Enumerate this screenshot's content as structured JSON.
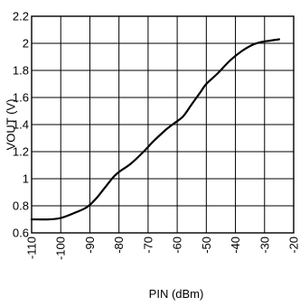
{
  "chart_data": {
    "type": "line",
    "xlabel": "PIN (dBm)",
    "ylabel": "VOUT (V)",
    "xlim": [
      -110,
      -20
    ],
    "ylim": [
      0.6,
      2.2
    ],
    "x_ticks": [
      -110,
      -100,
      -90,
      -80,
      -70,
      -60,
      -50,
      -40,
      -30,
      -20
    ],
    "y_ticks": [
      0.6,
      0.8,
      1,
      1.2,
      1.4,
      1.6,
      1.8,
      2,
      2.2
    ],
    "x_tick_labels": [
      "-110",
      "-100",
      "-90",
      "-80",
      "-70",
      "-60",
      "-50",
      "-40",
      "-30",
      "-20"
    ],
    "y_tick_labels": [
      "0.6",
      "0.8",
      "1",
      "1.2",
      "1.4",
      "1.6",
      "1.8",
      "2",
      "2.2"
    ],
    "grid": true,
    "series": [
      {
        "x": [
          -110,
          -104,
          -100,
          -95,
          -91,
          -88,
          -85,
          -82,
          -80,
          -76,
          -72,
          -68,
          -64,
          -61,
          -58,
          -55,
          -52,
          -50,
          -46,
          -42,
          -38,
          -34,
          -31,
          -28,
          -25
        ],
        "y": [
          0.7,
          0.7,
          0.71,
          0.75,
          0.79,
          0.85,
          0.93,
          1.01,
          1.05,
          1.11,
          1.19,
          1.28,
          1.36,
          1.41,
          1.46,
          1.55,
          1.64,
          1.7,
          1.78,
          1.87,
          1.94,
          1.99,
          2.01,
          2.02,
          2.03
        ]
      }
    ],
    "color": "#000000"
  }
}
